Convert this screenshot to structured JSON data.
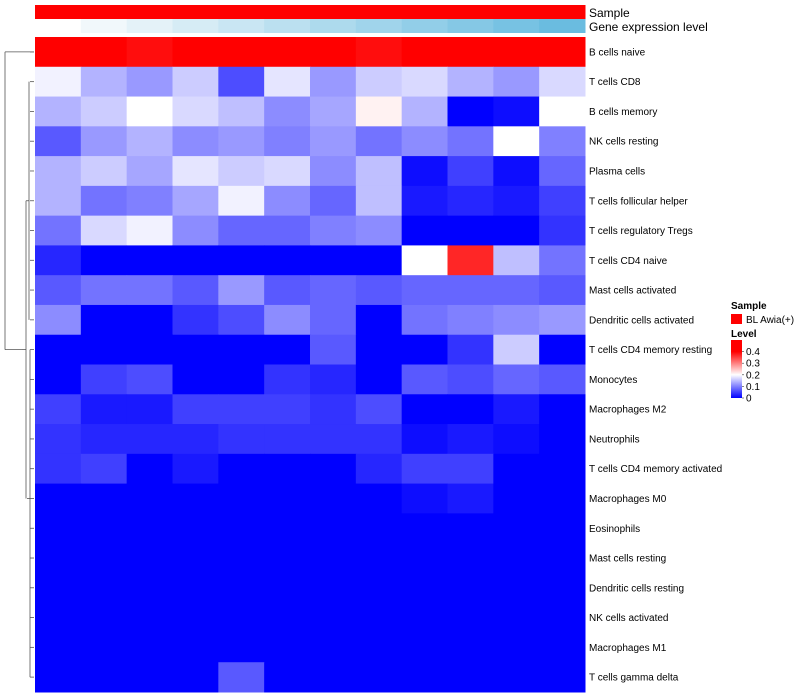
{
  "chart_data": {
    "type": "heatmap",
    "title": "",
    "annotations": [
      {
        "name": "Sample",
        "colors": [
          "#ff0000",
          "#ff0000",
          "#ff0000",
          "#ff0000",
          "#ff0000",
          "#ff0000",
          "#ff0000",
          "#ff0000",
          "#ff0000",
          "#ff0000",
          "#ff0000",
          "#ff0000"
        ]
      },
      {
        "name": "Gene expression level",
        "colors": [
          "#ffffff",
          "#f1f8fb",
          "#e4f2f8",
          "#d6ecf5",
          "#c9e6f3",
          "#bbe0f0",
          "#addaed",
          "#a0d4eb",
          "#92cee8",
          "#85c8e5",
          "#77c2e3",
          "#6abce0"
        ]
      }
    ],
    "rows": [
      "B cells naive",
      "T cells CD8",
      "B cells memory",
      "NK cells resting",
      "Plasma cells",
      "T cells follicular helper",
      "T cells regulatory  Tregs",
      "T cells CD4 naive",
      "Mast cells activated",
      "Dendritic cells activated",
      "T cells CD4 memory resting",
      "Monocytes",
      "Macrophages M2",
      "Neutrophils",
      "T cells CD4 memory activated",
      "Macrophages M0",
      "Eosinophils",
      "Mast cells resting",
      "Dendritic cells resting",
      "NK cells activated",
      "Macrophages M1",
      "T cells gamma delta"
    ],
    "values": [
      [
        0.42,
        0.41,
        0.39,
        0.46,
        0.47,
        0.49,
        0.5,
        0.39,
        0.5,
        0.48,
        0.5,
        0.46
      ],
      [
        0.19,
        0.14,
        0.12,
        0.16,
        0.06,
        0.18,
        0.12,
        0.16,
        0.17,
        0.14,
        0.12,
        0.17
      ],
      [
        0.14,
        0.16,
        0.2,
        0.17,
        0.15,
        0.11,
        0.13,
        0.21,
        0.14,
        0.0,
        0.01,
        0.2
      ],
      [
        0.07,
        0.12,
        0.14,
        0.11,
        0.12,
        0.1,
        0.12,
        0.09,
        0.11,
        0.09,
        0.2,
        0.1
      ],
      [
        0.14,
        0.16,
        0.13,
        0.18,
        0.16,
        0.17,
        0.11,
        0.15,
        0.01,
        0.05,
        0.01,
        0.08
      ],
      [
        0.14,
        0.09,
        0.1,
        0.13,
        0.19,
        0.11,
        0.08,
        0.15,
        0.02,
        0.03,
        0.02,
        0.05
      ],
      [
        0.09,
        0.17,
        0.19,
        0.11,
        0.08,
        0.08,
        0.1,
        0.11,
        0.0,
        0.0,
        0.0,
        0.04
      ],
      [
        0.03,
        0.0,
        0.0,
        0.0,
        0.0,
        0.0,
        0.0,
        0.0,
        0.2,
        0.37,
        0.15,
        0.09
      ],
      [
        0.07,
        0.09,
        0.09,
        0.07,
        0.12,
        0.07,
        0.08,
        0.07,
        0.08,
        0.08,
        0.08,
        0.07
      ],
      [
        0.11,
        0.0,
        0.0,
        0.04,
        0.06,
        0.11,
        0.08,
        0.0,
        0.09,
        0.1,
        0.11,
        0.12
      ],
      [
        0.0,
        0.0,
        0.0,
        0.0,
        0.0,
        0.0,
        0.07,
        0.0,
        0.0,
        0.04,
        0.16,
        0.0
      ],
      [
        0.0,
        0.05,
        0.06,
        0.0,
        0.0,
        0.04,
        0.03,
        0.0,
        0.07,
        0.06,
        0.08,
        0.07
      ],
      [
        0.05,
        0.02,
        0.02,
        0.05,
        0.05,
        0.05,
        0.04,
        0.06,
        0.0,
        0.0,
        0.02,
        0.0
      ],
      [
        0.04,
        0.03,
        0.03,
        0.03,
        0.04,
        0.04,
        0.04,
        0.04,
        0.01,
        0.02,
        0.01,
        0.0
      ],
      [
        0.04,
        0.05,
        0.0,
        0.02,
        0.0,
        0.0,
        0.0,
        0.03,
        0.05,
        0.05,
        0.0,
        0.0
      ],
      [
        0.0,
        0.0,
        0.0,
        0.0,
        0.0,
        0.0,
        0.0,
        0.0,
        0.01,
        0.02,
        0.0,
        0.0
      ],
      [
        0.0,
        0.0,
        0.0,
        0.0,
        0.0,
        0.0,
        0.0,
        0.0,
        0.0,
        0.0,
        0.0,
        0.0
      ],
      [
        0.0,
        0.0,
        0.0,
        0.0,
        0.0,
        0.0,
        0.0,
        0.0,
        0.0,
        0.0,
        0.0,
        0.0
      ],
      [
        0.0,
        0.0,
        0.0,
        0.0,
        0.0,
        0.0,
        0.0,
        0.0,
        0.0,
        0.0,
        0.0,
        0.0
      ],
      [
        0.0,
        0.0,
        0.0,
        0.0,
        0.0,
        0.0,
        0.0,
        0.0,
        0.0,
        0.0,
        0.0,
        0.0
      ],
      [
        0.0,
        0.0,
        0.0,
        0.0,
        0.0,
        0.0,
        0.0,
        0.0,
        0.0,
        0.0,
        0.0,
        0.0
      ],
      [
        0.0,
        0.0,
        0.0,
        0.0,
        0.07,
        0.0,
        0.0,
        0.0,
        0.0,
        0.0,
        0.0,
        0.0
      ]
    ],
    "color_scale": {
      "stops": [
        {
          "value": 0.0,
          "color": "#0000ff"
        },
        {
          "value": 0.2,
          "color": "#ffffff"
        },
        {
          "value": 0.4,
          "color": "#ff0000"
        }
      ],
      "range": [
        0,
        0.5
      ]
    },
    "legend": {
      "position": "right",
      "sample_title": "Sample",
      "sample_label": "BL Awia(+)",
      "sample_color": "#ff0000",
      "level_title": "Level",
      "level_ticks": [
        0.4,
        0.3,
        0.2,
        0.1,
        0
      ]
    },
    "row_dendrogram": true,
    "grid": false
  }
}
